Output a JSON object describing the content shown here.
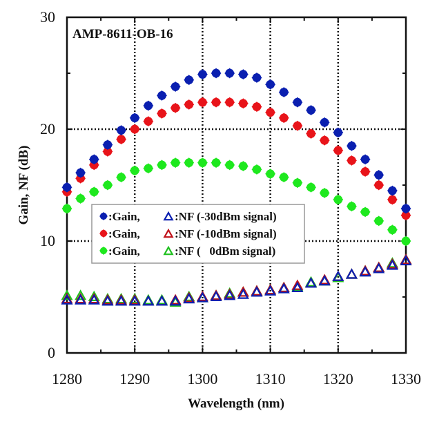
{
  "chart_data": {
    "type": "scatter",
    "title": "",
    "annotation": "AMP-8611-OB-16",
    "xlabel": "Wavelength (nm)",
    "ylabel": "Gain, NF (dB)",
    "xlim": [
      1280,
      1330
    ],
    "ylim": [
      0,
      30
    ],
    "xticks": [
      1280,
      1290,
      1300,
      1310,
      1320,
      1330
    ],
    "yticks": [
      0,
      10,
      20,
      30
    ],
    "xtick_labels": [
      "1280",
      "1290",
      "1300",
      "1310",
      "1320",
      "1330"
    ],
    "ytick_labels": [
      "0",
      "10",
      "20",
      "30"
    ],
    "grid": "dotted, major ticks",
    "legend_position": "center-left",
    "x": [
      1280,
      1282,
      1284,
      1286,
      1288,
      1290,
      1292,
      1294,
      1296,
      1298,
      1300,
      1302,
      1304,
      1306,
      1308,
      1310,
      1312,
      1314,
      1316,
      1318,
      1320,
      1322,
      1324,
      1326,
      1328,
      1330
    ],
    "series": [
      {
        "name": "Gain (-30dBm signal)",
        "marker": "diamond",
        "color": "#0a1fb0",
        "values": [
          14.8,
          16.1,
          17.3,
          18.6,
          19.9,
          21.0,
          22.1,
          23.0,
          23.8,
          24.4,
          24.9,
          25.0,
          25.0,
          24.9,
          24.6,
          24.0,
          23.3,
          22.4,
          21.7,
          20.6,
          19.7,
          18.5,
          17.3,
          15.9,
          14.5,
          12.9
        ]
      },
      {
        "name": "Gain (-10dBm signal)",
        "marker": "diamond",
        "color": "#e8141a",
        "values": [
          14.4,
          15.6,
          16.8,
          18.0,
          19.1,
          20.0,
          20.7,
          21.4,
          21.9,
          22.2,
          22.4,
          22.4,
          22.4,
          22.3,
          22.0,
          21.5,
          21.0,
          20.3,
          19.6,
          19.0,
          18.1,
          17.2,
          16.2,
          15.0,
          13.7,
          12.3
        ]
      },
      {
        "name": "Gain (0dBm signal)",
        "marker": "diamond",
        "color": "#1ee81e",
        "values": [
          12.9,
          13.8,
          14.4,
          15.0,
          15.7,
          16.3,
          16.5,
          16.8,
          17.0,
          17.0,
          17.0,
          17.0,
          16.8,
          16.7,
          16.4,
          16.0,
          15.7,
          15.2,
          14.8,
          14.3,
          13.7,
          13.1,
          12.6,
          11.8,
          11.0,
          10.0
        ]
      },
      {
        "name": "NF (-30dBm signal)",
        "marker": "open-triangle",
        "color": "#0a1fb0",
        "values": [
          4.7,
          4.7,
          4.7,
          4.6,
          4.6,
          4.6,
          4.6,
          4.6,
          4.6,
          4.8,
          4.9,
          5.0,
          5.1,
          5.2,
          5.4,
          5.5,
          5.7,
          5.8,
          6.2,
          6.4,
          6.8,
          7.0,
          7.2,
          7.5,
          7.8,
          8.2
        ]
      },
      {
        "name": "NF (-10dBm signal)",
        "marker": "open-triangle",
        "color": "#c0121a",
        "values": [
          4.8,
          4.8,
          4.8,
          4.7,
          4.7,
          4.7,
          4.6,
          4.6,
          4.7,
          4.9,
          5.0,
          5.1,
          5.2,
          5.4,
          5.5,
          5.6,
          5.8,
          6.0,
          6.2,
          6.5,
          6.8,
          7.0,
          7.3,
          7.6,
          7.9,
          8.3
        ]
      },
      {
        "name": "NF (0dBm signal)",
        "marker": "open-triangle",
        "color": "#20c020",
        "values": [
          5.1,
          5.1,
          5.0,
          4.8,
          4.8,
          4.8,
          4.7,
          4.7,
          4.5,
          5.0,
          4.9,
          5.1,
          5.3,
          5.4,
          5.5,
          5.6,
          5.8,
          5.9,
          6.3,
          6.4,
          6.7,
          7.0,
          7.3,
          7.6,
          8.0,
          8.3
        ]
      }
    ],
    "legend": [
      {
        "gain_label": ":Gain,",
        "nf_label": ":NF (-30dBm signal)",
        "color": "#0a1fb0"
      },
      {
        "gain_label": ":Gain,",
        "nf_label": ":NF (-10dBm signal)",
        "color": "#e8141a"
      },
      {
        "gain_label": ":Gain,",
        "nf_label": ":NF (   0dBm signal)",
        "color": "#1ee81e"
      }
    ]
  }
}
